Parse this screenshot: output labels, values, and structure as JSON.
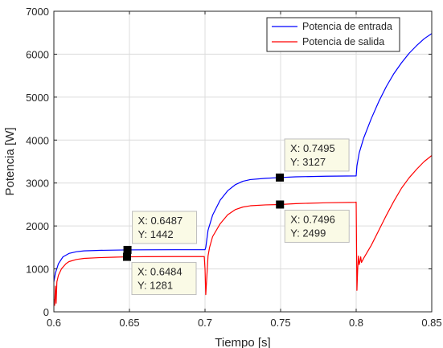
{
  "chart_data": {
    "type": "line",
    "xlabel": "Tiempo [s]",
    "ylabel": "Potencia [W]",
    "xlim": [
      0.6,
      0.85
    ],
    "ylim": [
      0,
      7000
    ],
    "xticks": [
      "0.6",
      "0.65",
      "0.7",
      "0.75",
      "0.8",
      "0.85"
    ],
    "yticks": [
      "0",
      "1000",
      "2000",
      "3000",
      "4000",
      "5000",
      "6000",
      "7000"
    ],
    "grid": true,
    "legend_position": "top-right",
    "series": [
      {
        "name": "Potencia de entrada",
        "color": "#0000ff",
        "x": [
          0.6,
          0.601,
          0.603,
          0.606,
          0.61,
          0.615,
          0.62,
          0.63,
          0.64,
          0.6487,
          0.66,
          0.68,
          0.7,
          0.7005,
          0.702,
          0.705,
          0.71,
          0.715,
          0.72,
          0.725,
          0.73,
          0.74,
          0.7495,
          0.76,
          0.78,
          0.8,
          0.8005,
          0.802,
          0.805,
          0.81,
          0.815,
          0.82,
          0.825,
          0.83,
          0.835,
          0.84,
          0.845,
          0.85
        ],
        "y": [
          700,
          900,
          1120,
          1280,
          1360,
          1400,
          1420,
          1432,
          1438,
          1442,
          1445,
          1447,
          1448,
          1500,
          1900,
          2250,
          2600,
          2820,
          2960,
          3040,
          3080,
          3110,
          3127,
          3145,
          3158,
          3165,
          3400,
          3700,
          4050,
          4500,
          4900,
          5250,
          5550,
          5800,
          6020,
          6200,
          6360,
          6480
        ]
      },
      {
        "name": "Potencia de salida",
        "color": "#ff0000",
        "x": [
          0.6,
          0.6005,
          0.601,
          0.6015,
          0.602,
          0.603,
          0.605,
          0.608,
          0.61,
          0.615,
          0.62,
          0.63,
          0.64,
          0.6484,
          0.66,
          0.68,
          0.6995,
          0.7,
          0.7005,
          0.701,
          0.702,
          0.703,
          0.705,
          0.71,
          0.715,
          0.72,
          0.725,
          0.73,
          0.74,
          0.7496,
          0.76,
          0.78,
          0.7995,
          0.8,
          0.8005,
          0.801,
          0.8015,
          0.802,
          0.8025,
          0.803,
          0.8035,
          0.805,
          0.81,
          0.815,
          0.82,
          0.825,
          0.83,
          0.835,
          0.84,
          0.845,
          0.85
        ],
        "y": [
          300,
          150,
          600,
          200,
          700,
          850,
          1000,
          1120,
          1170,
          1220,
          1245,
          1262,
          1273,
          1281,
          1285,
          1287,
          1288,
          1000,
          400,
          700,
          1300,
          1500,
          1750,
          2050,
          2260,
          2380,
          2440,
          2470,
          2490,
          2499,
          2520,
          2540,
          2550,
          2555,
          500,
          1000,
          1300,
          1100,
          1180,
          1280,
          1150,
          1250,
          1550,
          1900,
          2250,
          2580,
          2880,
          3120,
          3320,
          3500,
          3640
        ]
      }
    ],
    "datatips": [
      {
        "x_label": "X: 0.6487",
        "y_label": "Y: 1442",
        "x": 0.6487,
        "y": 1442,
        "placement": "above"
      },
      {
        "x_label": "X: 0.6484",
        "y_label": "Y: 1281",
        "x": 0.6484,
        "y": 1281,
        "placement": "below"
      },
      {
        "x_label": "X: 0.7495",
        "y_label": "Y: 3127",
        "x": 0.7495,
        "y": 3127,
        "placement": "above"
      },
      {
        "x_label": "X: 0.7496",
        "y_label": "Y: 2499",
        "x": 0.7496,
        "y": 2499,
        "placement": "below"
      }
    ]
  }
}
